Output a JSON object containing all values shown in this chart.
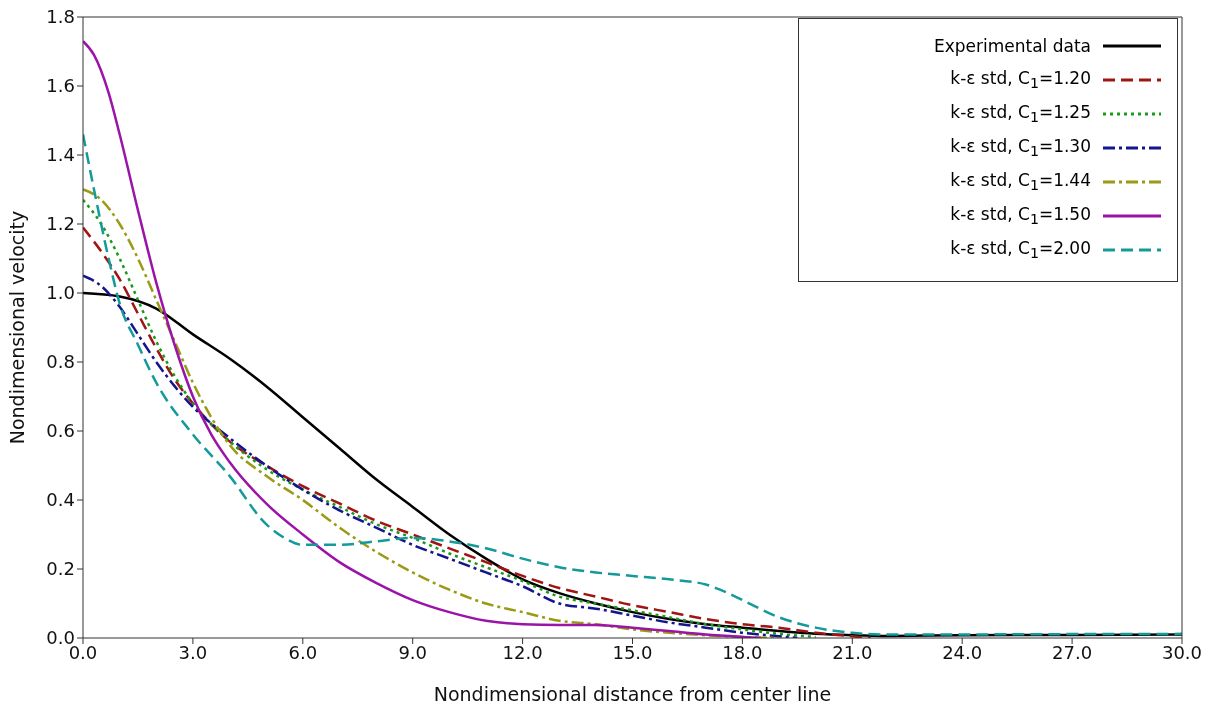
{
  "chart_data": {
    "type": "line",
    "xlabel": "Nondimensional distance from center line",
    "ylabel": "Nondimensional velocity",
    "xlim": [
      0,
      30
    ],
    "ylim": [
      0,
      1.8
    ],
    "xticks": [
      {
        "value": 0,
        "label": "0.0"
      },
      {
        "value": 3,
        "label": "3.0"
      },
      {
        "value": 6,
        "label": "6.0"
      },
      {
        "value": 9,
        "label": "9.0"
      },
      {
        "value": 12,
        "label": "12.0"
      },
      {
        "value": 15,
        "label": "15.0"
      },
      {
        "value": 18,
        "label": "18.0"
      },
      {
        "value": 21,
        "label": "21.0"
      },
      {
        "value": 24,
        "label": "24.0"
      },
      {
        "value": 27,
        "label": "27.0"
      },
      {
        "value": 30,
        "label": "30.0"
      }
    ],
    "yticks": [
      {
        "value": 0,
        "label": "0.0"
      },
      {
        "value": 0.2,
        "label": "0.2"
      },
      {
        "value": 0.4,
        "label": "0.4"
      },
      {
        "value": 0.6,
        "label": "0.6"
      },
      {
        "value": 0.8,
        "label": "0.8"
      },
      {
        "value": 1.0,
        "label": "1.0"
      },
      {
        "value": 1.2,
        "label": "1.2"
      },
      {
        "value": 1.4,
        "label": "1.4"
      },
      {
        "value": 1.6,
        "label": "1.6"
      },
      {
        "value": 1.8,
        "label": "1.8"
      }
    ],
    "grid": false,
    "legend": "top right",
    "marker": "none",
    "series": [
      {
        "name": "Experimental data",
        "color": "#000000",
        "line_style": "solid",
        "x": [
          0,
          1,
          2,
          3,
          4,
          5,
          6,
          7,
          8,
          9,
          10,
          11,
          12,
          13,
          14,
          15,
          16,
          17,
          18,
          19,
          20,
          21,
          22,
          24,
          27,
          30
        ],
        "values": [
          1.0,
          0.99,
          0.955,
          0.88,
          0.81,
          0.73,
          0.64,
          0.55,
          0.46,
          0.38,
          0.3,
          0.23,
          0.17,
          0.13,
          0.1,
          0.075,
          0.055,
          0.04,
          0.03,
          0.02,
          0.012,
          0.008,
          0.006,
          0.008,
          0.009,
          0.01
        ]
      },
      {
        "name": "k-ε std, C$_{1}$=1.20",
        "color": "#a01414",
        "line_style": "dashed",
        "x": [
          0,
          0.5,
          1,
          1.5,
          2,
          2.5,
          3,
          3.5,
          4,
          5,
          6,
          7,
          8,
          9,
          10,
          11,
          12,
          13,
          14,
          15,
          16,
          17,
          18,
          19,
          20,
          21,
          21.5
        ],
        "values": [
          1.19,
          1.12,
          1.04,
          0.94,
          0.84,
          0.75,
          0.68,
          0.62,
          0.57,
          0.5,
          0.44,
          0.39,
          0.34,
          0.3,
          0.26,
          0.22,
          0.18,
          0.145,
          0.12,
          0.095,
          0.075,
          0.055,
          0.04,
          0.03,
          0.015,
          0.005,
          0
        ]
      },
      {
        "name": "k-ε std, C$_{1}$=1.25",
        "color": "#1a9a1a",
        "line_style": "dotted",
        "x": [
          0,
          0.5,
          1,
          1.5,
          2,
          2.5,
          3,
          4,
          5,
          6,
          7,
          8,
          9,
          10,
          11,
          12,
          13,
          14,
          15,
          16,
          17,
          18,
          19,
          20
        ],
        "values": [
          1.27,
          1.2,
          1.1,
          0.98,
          0.86,
          0.76,
          0.68,
          0.57,
          0.49,
          0.43,
          0.38,
          0.33,
          0.29,
          0.245,
          0.205,
          0.165,
          0.12,
          0.1,
          0.08,
          0.06,
          0.04,
          0.025,
          0.012,
          0.003
        ]
      },
      {
        "name": "k-ε std, C$_{1}$=1.30",
        "color": "#14148c",
        "line_style": "dashdot",
        "x": [
          0,
          0.5,
          1,
          1.5,
          2,
          2.5,
          3,
          4,
          5,
          6,
          7,
          8,
          9,
          10,
          11,
          12,
          13,
          14,
          15,
          16,
          17,
          18,
          19,
          19.5
        ],
        "values": [
          1.05,
          1.02,
          0.96,
          0.88,
          0.8,
          0.73,
          0.67,
          0.58,
          0.5,
          0.43,
          0.37,
          0.32,
          0.27,
          0.23,
          0.19,
          0.15,
          0.1,
          0.085,
          0.065,
          0.045,
          0.03,
          0.015,
          0.005,
          0
        ]
      },
      {
        "name": "k-ε std, C$_{1}$=1.44",
        "color": "#9a9a14",
        "line_style": "dashdot",
        "x": [
          0,
          0.5,
          1,
          1.5,
          2,
          2.5,
          3,
          3.5,
          4,
          5,
          6,
          7,
          8,
          9,
          10,
          11,
          12,
          13,
          14,
          15,
          16,
          17,
          18,
          19
        ],
        "values": [
          1.3,
          1.27,
          1.2,
          1.1,
          0.98,
          0.86,
          0.74,
          0.64,
          0.56,
          0.47,
          0.4,
          0.32,
          0.25,
          0.19,
          0.14,
          0.1,
          0.075,
          0.05,
          0.04,
          0.025,
          0.015,
          0.008,
          0.003,
          0
        ]
      },
      {
        "name": "k-ε std, C$_{1}$=1.50",
        "color": "#9a14a8",
        "line_style": "solid",
        "x": [
          0,
          0.3,
          0.7,
          1,
          1.5,
          2,
          2.5,
          3,
          3.5,
          4,
          5,
          6,
          7,
          8,
          9,
          10,
          11,
          12,
          13,
          14,
          15,
          16,
          17,
          18,
          18.5
        ],
        "values": [
          1.73,
          1.69,
          1.58,
          1.46,
          1.24,
          1.03,
          0.85,
          0.7,
          0.59,
          0.51,
          0.39,
          0.3,
          0.22,
          0.16,
          0.11,
          0.075,
          0.05,
          0.04,
          0.038,
          0.038,
          0.03,
          0.02,
          0.01,
          0.003,
          0
        ]
      },
      {
        "name": "k-ε std, C$_{1}$=2.00",
        "color": "#149a9a",
        "line_style": "dashed",
        "x": [
          0,
          0.3,
          0.7,
          1,
          1.5,
          2,
          3,
          4,
          5,
          5.5,
          6,
          7,
          8,
          9,
          10,
          11,
          12,
          13,
          14,
          15,
          16,
          17,
          17.5,
          18,
          19,
          20,
          21,
          22,
          23,
          26,
          30
        ],
        "values": [
          1.46,
          1.3,
          1.1,
          0.97,
          0.85,
          0.74,
          0.59,
          0.47,
          0.33,
          0.29,
          0.27,
          0.27,
          0.28,
          0.29,
          0.28,
          0.26,
          0.23,
          0.205,
          0.19,
          0.18,
          0.17,
          0.155,
          0.135,
          0.11,
          0.06,
          0.03,
          0.015,
          0.01,
          0.01,
          0.011,
          0.012
        ]
      }
    ]
  }
}
